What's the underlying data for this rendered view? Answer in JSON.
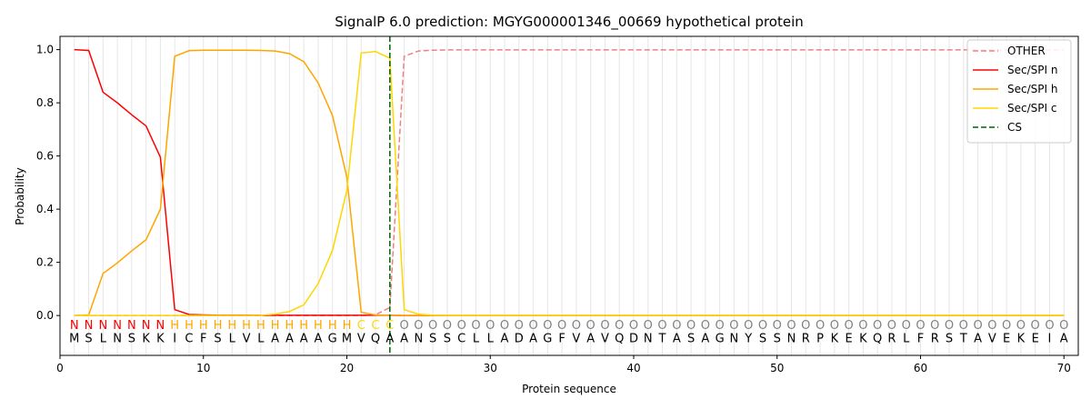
{
  "chart_data": {
    "type": "line",
    "title": "SignalP 6.0 prediction: MGYG000001346_00669 hypothetical protein",
    "xlabel": "Protein sequence",
    "ylabel": "Probability",
    "xlim": [
      0,
      71
    ],
    "ylim": [
      -0.15,
      1.05
    ],
    "xticks": [
      0,
      10,
      20,
      30,
      40,
      50,
      60,
      70
    ],
    "yticks": [
      0.0,
      0.2,
      0.4,
      0.6,
      0.8,
      1.0
    ],
    "grid": "vertical lines at each residue",
    "legend_position": "top-right",
    "sequence": [
      "M",
      "S",
      "L",
      "N",
      "S",
      "K",
      "K",
      "I",
      "C",
      "F",
      "S",
      "L",
      "V",
      "L",
      "A",
      "A",
      "A",
      "A",
      "G",
      "M",
      "V",
      "Q",
      "A",
      "A",
      "N",
      "S",
      "S",
      "C",
      "L",
      "L",
      "A",
      "D",
      "A",
      "G",
      "F",
      "V",
      "A",
      "V",
      "Q",
      "D",
      "N",
      "T",
      "A",
      "S",
      "A",
      "G",
      "N",
      "Y",
      "S",
      "S",
      "N",
      "R",
      "P",
      "K",
      "E",
      "K",
      "Q",
      "R",
      "L",
      "F",
      "R",
      "S",
      "T",
      "A",
      "V",
      "E",
      "K",
      "E",
      "I",
      "A"
    ],
    "labels": [
      "N",
      "N",
      "N",
      "N",
      "N",
      "N",
      "N",
      "H",
      "H",
      "H",
      "H",
      "H",
      "H",
      "H",
      "H",
      "H",
      "H",
      "H",
      "H",
      "H",
      "C",
      "C",
      "C",
      "O",
      "O",
      "O",
      "O",
      "O",
      "O",
      "O",
      "O",
      "O",
      "O",
      "O",
      "O",
      "O",
      "O",
      "O",
      "O",
      "O",
      "O",
      "O",
      "O",
      "O",
      "O",
      "O",
      "O",
      "O",
      "O",
      "O",
      "O",
      "O",
      "O",
      "O",
      "O",
      "O",
      "O",
      "O",
      "O",
      "O",
      "O",
      "O",
      "O",
      "O",
      "O",
      "O",
      "O",
      "O",
      "O",
      "O"
    ],
    "label_colors": {
      "N": "#ff0000",
      "H": "#ffa500",
      "C": "#ffd700",
      "O": "#808080"
    },
    "series": [
      {
        "name": "OTHER",
        "color": "#f08080",
        "dash": "dashed",
        "x": [
          1,
          2,
          3,
          4,
          5,
          6,
          7,
          8,
          9,
          10,
          11,
          12,
          13,
          14,
          15,
          16,
          17,
          18,
          19,
          20,
          21,
          22,
          23,
          24,
          25,
          26,
          27,
          28,
          29,
          30,
          31,
          32,
          33,
          34,
          35,
          36,
          37,
          38,
          39,
          40,
          41,
          42,
          43,
          44,
          45,
          46,
          47,
          48,
          49,
          50,
          51,
          52,
          53,
          54,
          55,
          56,
          57,
          58,
          59,
          60,
          61,
          62,
          63,
          64,
          65,
          66,
          67,
          68,
          69,
          70
        ],
        "values": [
          0,
          0,
          0,
          0,
          0,
          0,
          0,
          0,
          0,
          0,
          0,
          0,
          0,
          0,
          0,
          0,
          0,
          0,
          0,
          0,
          0,
          0.003,
          0.03,
          0.975,
          0.995,
          0.998,
          0.999,
          0.999,
          0.999,
          0.999,
          0.999,
          0.999,
          0.999,
          0.999,
          0.999,
          0.999,
          0.999,
          0.999,
          0.999,
          0.999,
          0.999,
          0.999,
          0.999,
          0.999,
          0.999,
          0.999,
          0.999,
          0.999,
          0.999,
          0.999,
          0.999,
          0.999,
          0.999,
          0.999,
          0.999,
          0.999,
          0.999,
          0.999,
          0.999,
          0.999,
          0.999,
          0.999,
          0.999,
          0.999,
          0.999,
          0.999,
          0.999,
          0.999,
          0.999,
          0.999
        ]
      },
      {
        "name": "Sec/SPI n",
        "color": "#ff0000",
        "dash": "solid",
        "x": [
          1,
          2,
          3,
          4,
          5,
          6,
          7,
          8,
          9,
          10,
          11,
          12,
          13,
          14,
          15,
          16,
          17,
          18,
          19,
          20,
          21,
          22,
          23,
          24,
          25,
          26,
          27,
          28,
          29,
          30,
          31,
          32,
          33,
          34,
          35,
          36,
          37,
          38,
          39,
          40,
          41,
          42,
          43,
          44,
          45,
          46,
          47,
          48,
          49,
          50,
          51,
          52,
          53,
          54,
          55,
          56,
          57,
          58,
          59,
          60,
          61,
          62,
          63,
          64,
          65,
          66,
          67,
          68,
          69,
          70
        ],
        "values": [
          1.0,
          0.997,
          0.84,
          0.8,
          0.755,
          0.713,
          0.595,
          0.022,
          0.004,
          0.002,
          0.001,
          0.001,
          0.001,
          0.001,
          0.001,
          0.001,
          0.001,
          0.001,
          0.001,
          0.001,
          0.001,
          0.001,
          0.001,
          0,
          0,
          0,
          0,
          0,
          0,
          0,
          0,
          0,
          0,
          0,
          0,
          0,
          0,
          0,
          0,
          0,
          0,
          0,
          0,
          0,
          0,
          0,
          0,
          0,
          0,
          0,
          0,
          0,
          0,
          0,
          0,
          0,
          0,
          0,
          0,
          0,
          0,
          0,
          0,
          0,
          0,
          0,
          0,
          0,
          0,
          0
        ]
      },
      {
        "name": "Sec/SPI h",
        "color": "#ffa500",
        "dash": "solid",
        "x": [
          1,
          2,
          3,
          4,
          5,
          6,
          7,
          8,
          9,
          10,
          11,
          12,
          13,
          14,
          15,
          16,
          17,
          18,
          19,
          20,
          21,
          22,
          23,
          24,
          25,
          26,
          27,
          28,
          29,
          30,
          31,
          32,
          33,
          34,
          35,
          36,
          37,
          38,
          39,
          40,
          41,
          42,
          43,
          44,
          45,
          46,
          47,
          48,
          49,
          50,
          51,
          52,
          53,
          54,
          55,
          56,
          57,
          58,
          59,
          60,
          61,
          62,
          63,
          64,
          65,
          66,
          67,
          68,
          69,
          70
        ],
        "values": [
          0.0,
          0.002,
          0.158,
          0.198,
          0.243,
          0.285,
          0.4,
          0.975,
          0.996,
          0.998,
          0.998,
          0.998,
          0.998,
          0.997,
          0.995,
          0.985,
          0.955,
          0.875,
          0.752,
          0.52,
          0.012,
          0.002,
          0.001,
          0,
          0,
          0,
          0,
          0,
          0,
          0,
          0,
          0,
          0,
          0,
          0,
          0,
          0,
          0,
          0,
          0,
          0,
          0,
          0,
          0,
          0,
          0,
          0,
          0,
          0,
          0,
          0,
          0,
          0,
          0,
          0,
          0,
          0,
          0,
          0,
          0,
          0,
          0,
          0,
          0,
          0,
          0,
          0,
          0,
          0,
          0
        ]
      },
      {
        "name": "Sec/SPI c",
        "color": "#ffd700",
        "dash": "solid",
        "x": [
          1,
          2,
          3,
          4,
          5,
          6,
          7,
          8,
          9,
          10,
          11,
          12,
          13,
          14,
          15,
          16,
          17,
          18,
          19,
          20,
          21,
          22,
          23,
          24,
          25,
          26,
          27,
          28,
          29,
          30,
          31,
          32,
          33,
          34,
          35,
          36,
          37,
          38,
          39,
          40,
          41,
          42,
          43,
          44,
          45,
          46,
          47,
          48,
          49,
          50,
          51,
          52,
          53,
          54,
          55,
          56,
          57,
          58,
          59,
          60,
          61,
          62,
          63,
          64,
          65,
          66,
          67,
          68,
          69,
          70
        ],
        "values": [
          0,
          0,
          0,
          0,
          0,
          0,
          0,
          0,
          0,
          0,
          0,
          0,
          0,
          0.001,
          0.005,
          0.015,
          0.04,
          0.12,
          0.245,
          0.47,
          0.987,
          0.993,
          0.968,
          0.022,
          0.005,
          0.001,
          0,
          0,
          0,
          0,
          0,
          0,
          0,
          0,
          0,
          0,
          0,
          0,
          0,
          0,
          0,
          0,
          0,
          0,
          0,
          0,
          0,
          0,
          0,
          0,
          0,
          0,
          0,
          0,
          0,
          0,
          0,
          0,
          0,
          0,
          0,
          0,
          0,
          0,
          0,
          0,
          0,
          0,
          0,
          0
        ]
      }
    ],
    "cs": {
      "name": "CS",
      "x": 23,
      "color": "#006400",
      "dash": "dashed"
    }
  }
}
